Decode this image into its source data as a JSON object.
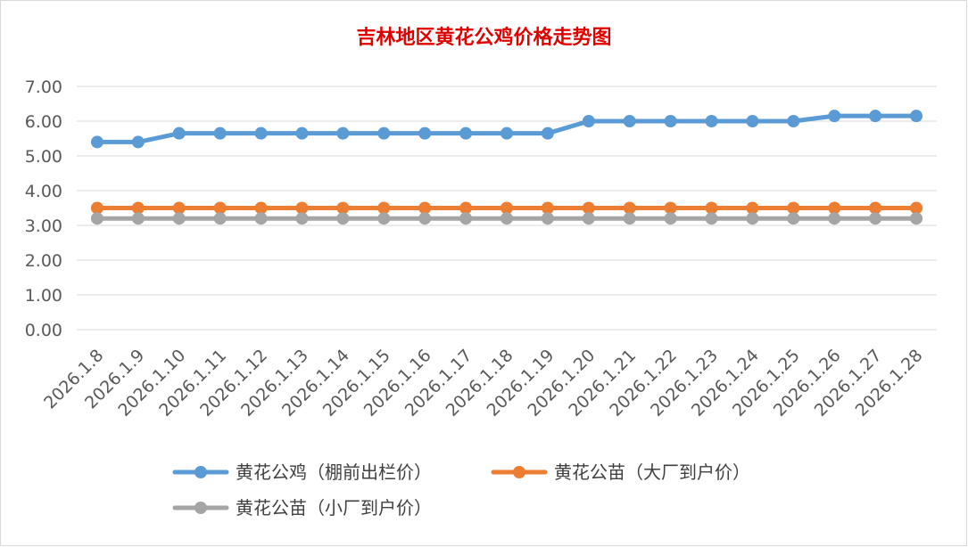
{
  "chart_data": {
    "type": "line",
    "title": "吉林地区黄花公鸡价格走势图",
    "categories": [
      "2026.1.8",
      "2026.1.9",
      "2026.1.10",
      "2026.1.11",
      "2026.1.12",
      "2026.1.13",
      "2026.1.14",
      "2026.1.15",
      "2026.1.16",
      "2026.1.17",
      "2026.1.18",
      "2026.1.19",
      "2026.1.20",
      "2026.1.21",
      "2026.1.22",
      "2026.1.23",
      "2026.1.24",
      "2026.1.25",
      "2026.1.26",
      "2026.1.27",
      "2026.1.28"
    ],
    "yticks": [
      "0.00",
      "1.00",
      "2.00",
      "3.00",
      "4.00",
      "5.00",
      "6.00",
      "7.00"
    ],
    "ylim": [
      0,
      7
    ],
    "grid": true,
    "legend_position": "bottom",
    "series": [
      {
        "name": "黄花公鸡（棚前出栏价）",
        "color": "#5b9bd5",
        "values": [
          5.4,
          5.4,
          5.65,
          5.65,
          5.65,
          5.65,
          5.65,
          5.65,
          5.65,
          5.65,
          5.65,
          5.65,
          6.0,
          6.0,
          6.0,
          6.0,
          6.0,
          6.0,
          6.15,
          6.15,
          6.15
        ]
      },
      {
        "name": "黄花公苗（大厂到户价）",
        "color": "#ed7d31",
        "values": [
          3.5,
          3.5,
          3.5,
          3.5,
          3.5,
          3.5,
          3.5,
          3.5,
          3.5,
          3.5,
          3.5,
          3.5,
          3.5,
          3.5,
          3.5,
          3.5,
          3.5,
          3.5,
          3.5,
          3.5,
          3.5
        ]
      },
      {
        "name": "黄花公苗（小厂到户价）",
        "color": "#a5a5a5",
        "values": [
          3.2,
          3.2,
          3.2,
          3.2,
          3.2,
          3.2,
          3.2,
          3.2,
          3.2,
          3.2,
          3.2,
          3.2,
          3.2,
          3.2,
          3.2,
          3.2,
          3.2,
          3.2,
          3.2,
          3.2,
          3.2
        ]
      }
    ]
  }
}
